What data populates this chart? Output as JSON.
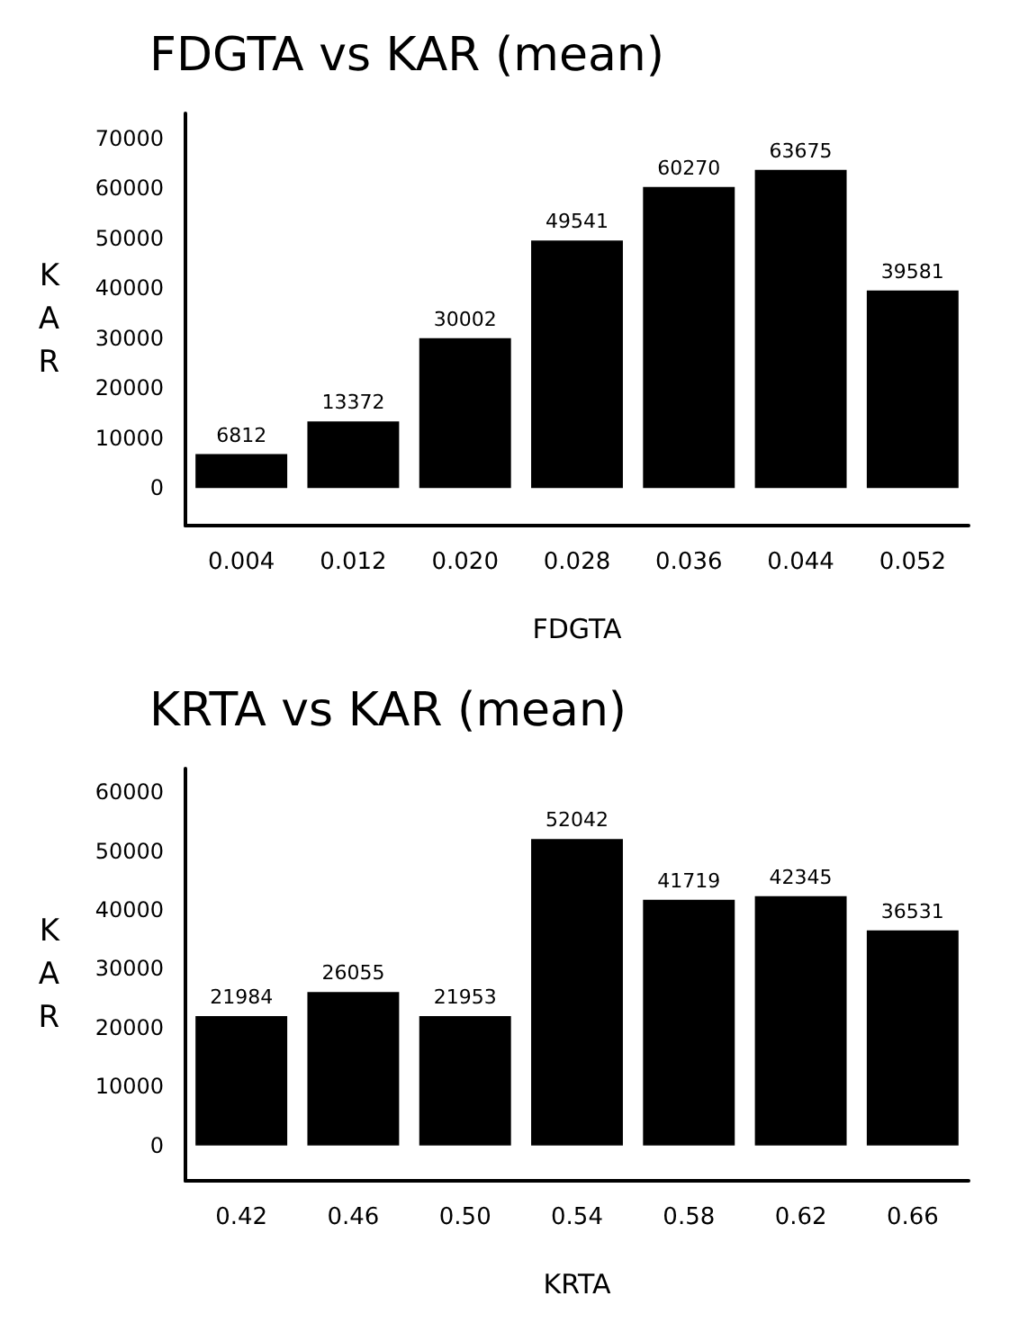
{
  "chart_data": [
    {
      "type": "bar",
      "title": "FDGTA vs KAR (mean)",
      "xlabel": "FDGTA",
      "ylabel": "KAR",
      "categories": [
        "0.004",
        "0.012",
        "0.020",
        "0.028",
        "0.036",
        "0.044",
        "0.052"
      ],
      "series": [
        {
          "color": "#000000",
          "values": [
            6812,
            13372,
            30002,
            49541,
            60270,
            63675,
            39581
          ]
        }
      ],
      "ylim": [
        -7500,
        75000
      ],
      "yticks": [
        0,
        10000,
        20000,
        30000,
        40000,
        50000,
        60000,
        70000
      ],
      "data_labels": true
    },
    {
      "type": "bar",
      "title": "KRTA vs KAR (mean)",
      "xlabel": "KRTA",
      "ylabel": "KAR",
      "categories": [
        "0.42",
        "0.46",
        "0.50",
        "0.54",
        "0.58",
        "0.62",
        "0.66"
      ],
      "series": [
        {
          "color": "#000000",
          "values": [
            21984,
            26055,
            21953,
            52042,
            41719,
            42345,
            36531
          ]
        }
      ],
      "ylim": [
        -6000,
        64000
      ],
      "yticks": [
        0,
        10000,
        20000,
        30000,
        40000,
        50000,
        60000
      ],
      "data_labels": true
    }
  ]
}
